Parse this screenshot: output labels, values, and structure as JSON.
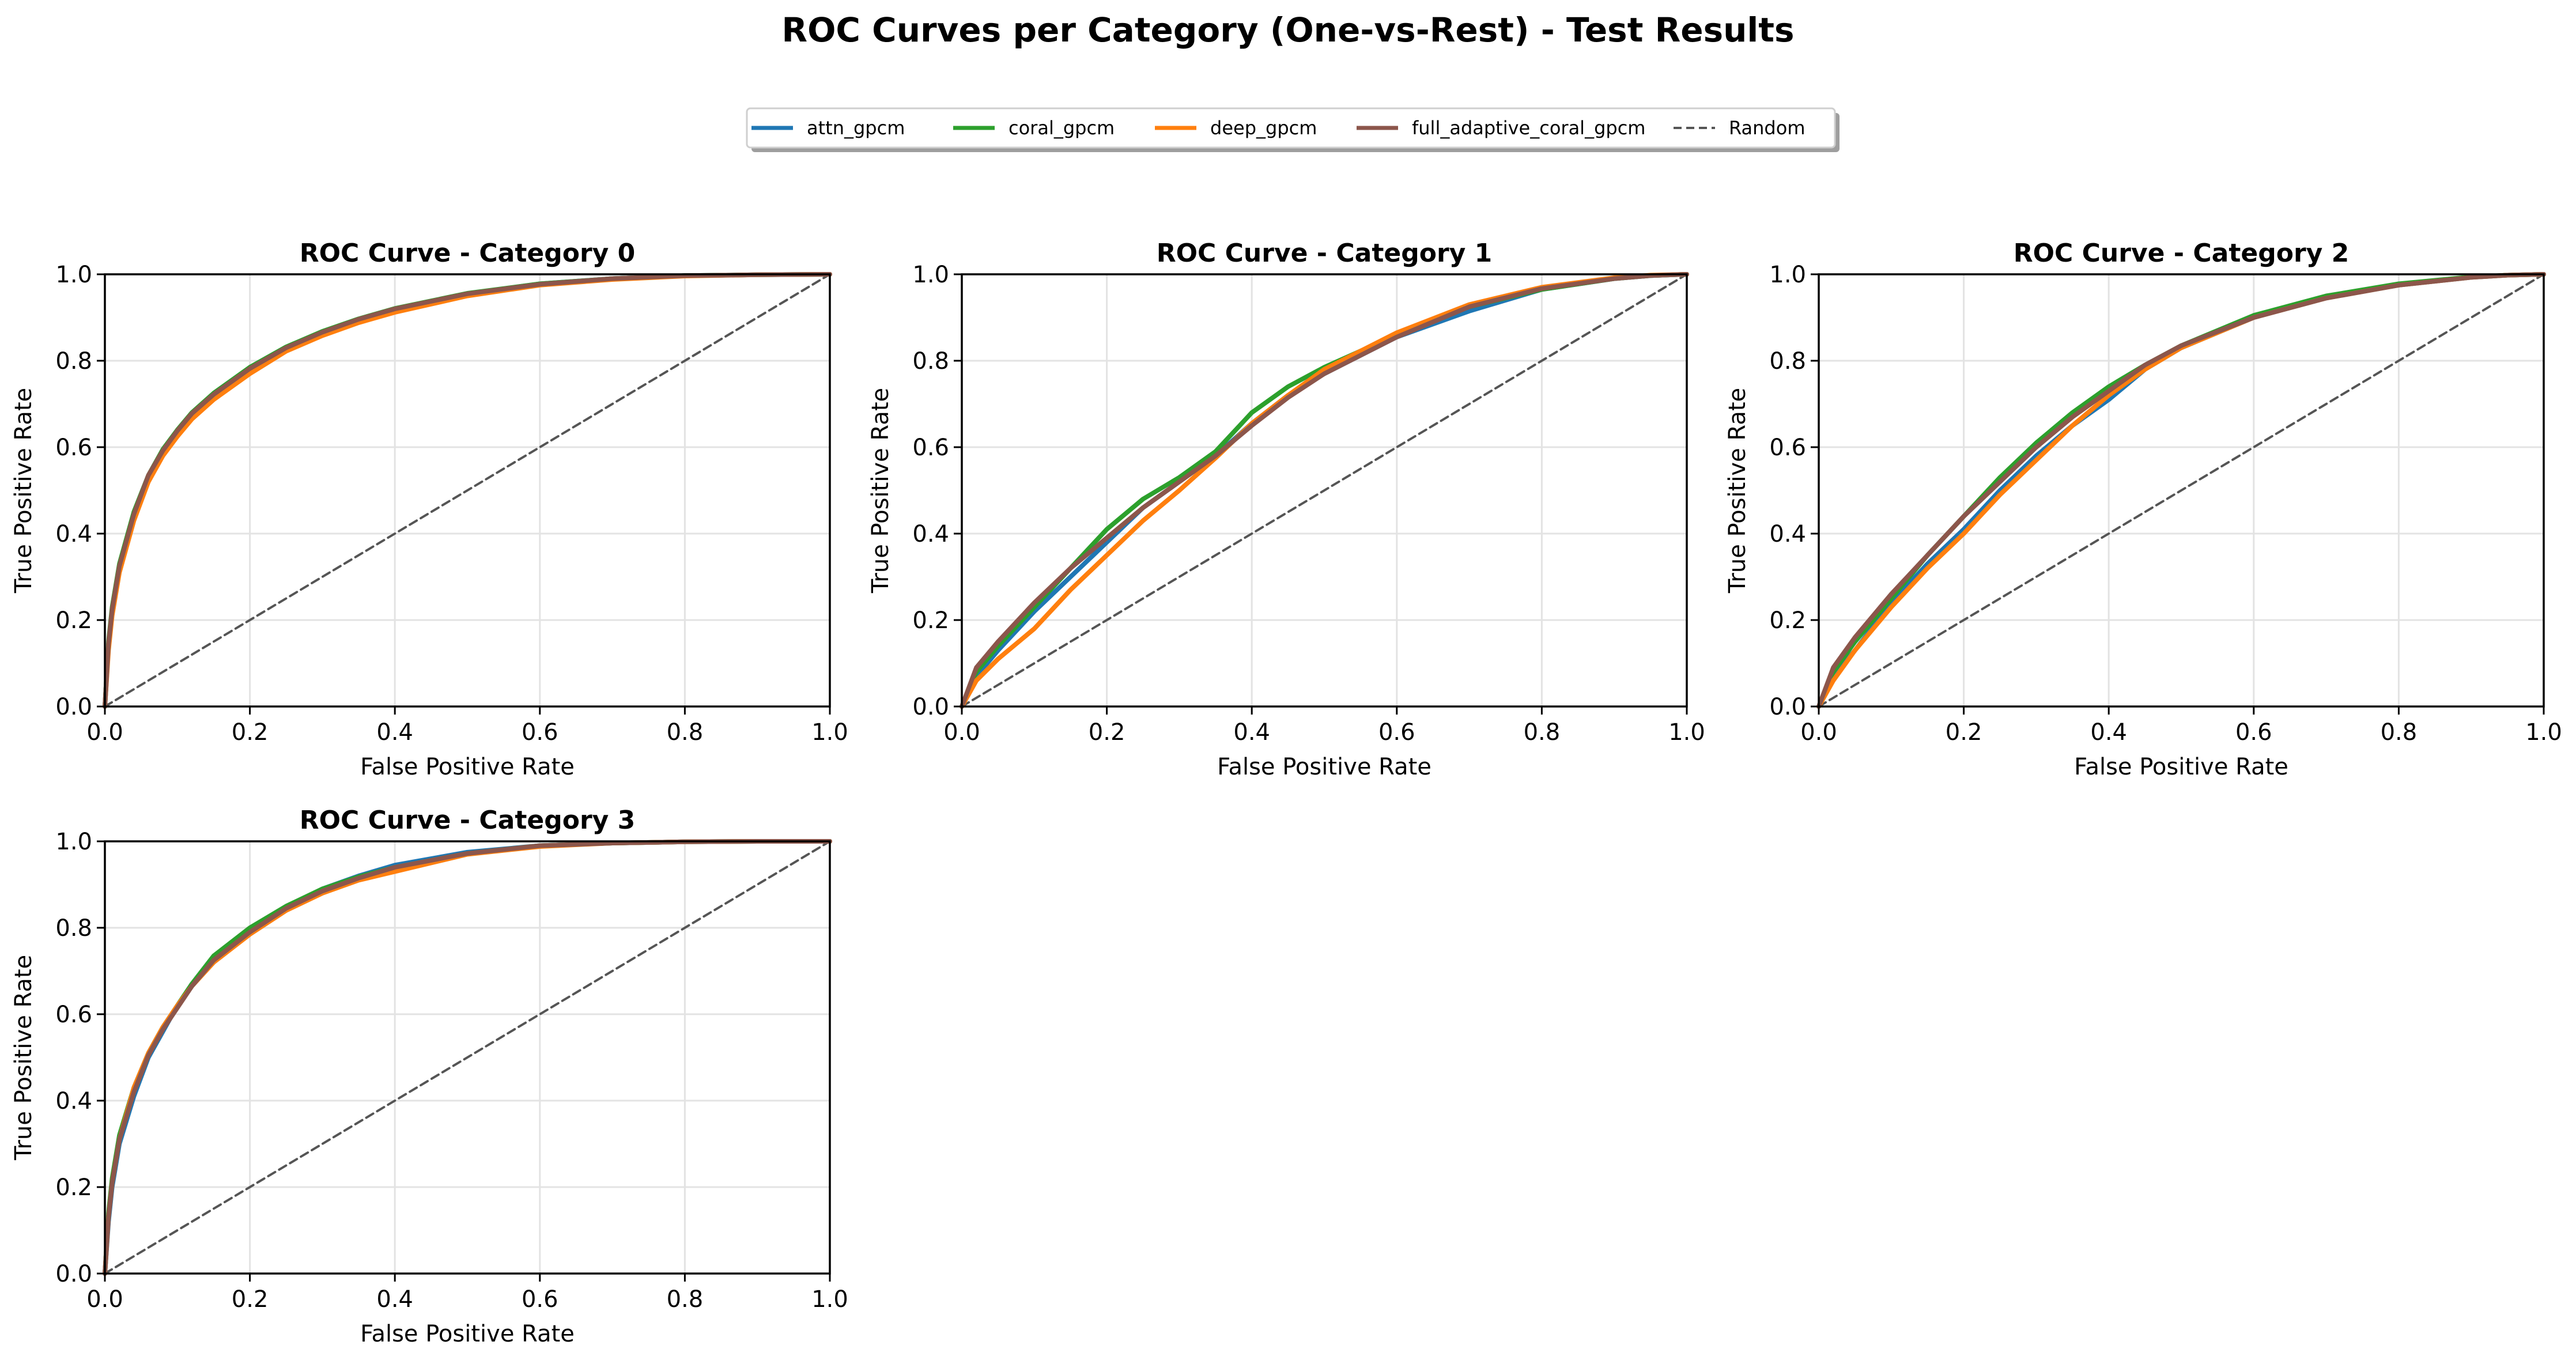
{
  "figure": {
    "suptitle": "ROC Curves per Category (One-vs-Rest) - Test Results"
  },
  "legend": {
    "placement": "top-center",
    "entries": [
      {
        "label": "attn_gpcm",
        "color": "#1f77b4",
        "style": "solid"
      },
      {
        "label": "coral_gpcm",
        "color": "#2ca02c",
        "style": "solid"
      },
      {
        "label": "deep_gpcm",
        "color": "#ff7f0e",
        "style": "solid"
      },
      {
        "label": "full_adaptive_coral_gpcm",
        "color": "#8c564b",
        "style": "solid"
      },
      {
        "label": "Random",
        "color": "#555555",
        "style": "dashed"
      }
    ]
  },
  "chart_data": [
    {
      "type": "line",
      "title": "ROC Curve - Category 0",
      "xlabel": "False Positive Rate",
      "ylabel": "True Positive Rate",
      "xlim": [
        0,
        1
      ],
      "ylim": [
        0,
        1
      ],
      "xticks": [
        "0.0",
        "0.2",
        "0.4",
        "0.6",
        "0.8",
        "1.0"
      ],
      "yticks": [
        "0.0",
        "0.2",
        "0.4",
        "0.6",
        "0.8",
        "1.0"
      ],
      "grid": true,
      "series": [
        {
          "name": "attn_gpcm",
          "x": [
            0,
            0.005,
            0.01,
            0.02,
            0.04,
            0.06,
            0.08,
            0.1,
            0.12,
            0.15,
            0.2,
            0.25,
            0.3,
            0.35,
            0.4,
            0.5,
            0.6,
            0.7,
            0.8,
            0.9,
            1.0
          ],
          "y": [
            0,
            0.14,
            0.22,
            0.32,
            0.44,
            0.53,
            0.59,
            0.635,
            0.675,
            0.72,
            0.78,
            0.83,
            0.865,
            0.895,
            0.92,
            0.955,
            0.978,
            0.99,
            0.997,
            0.999,
            1.0
          ]
        },
        {
          "name": "coral_gpcm",
          "x": [
            0,
            0.005,
            0.01,
            0.02,
            0.04,
            0.06,
            0.08,
            0.1,
            0.12,
            0.15,
            0.2,
            0.25,
            0.3,
            0.35,
            0.4,
            0.5,
            0.6,
            0.7,
            0.8,
            0.9,
            1.0
          ],
          "y": [
            0,
            0.15,
            0.23,
            0.33,
            0.45,
            0.535,
            0.595,
            0.64,
            0.68,
            0.725,
            0.785,
            0.832,
            0.868,
            0.897,
            0.921,
            0.956,
            0.978,
            0.99,
            0.997,
            0.999,
            1.0
          ]
        },
        {
          "name": "deep_gpcm",
          "x": [
            0,
            0.005,
            0.01,
            0.02,
            0.04,
            0.06,
            0.08,
            0.1,
            0.12,
            0.15,
            0.2,
            0.25,
            0.3,
            0.35,
            0.4,
            0.5,
            0.6,
            0.7,
            0.8,
            0.9,
            1.0
          ],
          "y": [
            0,
            0.13,
            0.21,
            0.31,
            0.43,
            0.52,
            0.58,
            0.625,
            0.665,
            0.71,
            0.77,
            0.822,
            0.858,
            0.888,
            0.912,
            0.95,
            0.975,
            0.988,
            0.996,
            0.999,
            1.0
          ]
        },
        {
          "name": "full_adaptive_coral_gpcm",
          "x": [
            0,
            0.005,
            0.01,
            0.02,
            0.04,
            0.06,
            0.08,
            0.1,
            0.12,
            0.15,
            0.2,
            0.25,
            0.3,
            0.35,
            0.4,
            0.5,
            0.6,
            0.7,
            0.8,
            0.9,
            1.0
          ],
          "y": [
            0,
            0.145,
            0.225,
            0.325,
            0.445,
            0.535,
            0.592,
            0.638,
            0.678,
            0.722,
            0.782,
            0.83,
            0.866,
            0.896,
            0.92,
            0.955,
            0.977,
            0.99,
            0.997,
            0.999,
            1.0
          ]
        },
        {
          "name": "Random",
          "x": [
            0,
            1
          ],
          "y": [
            0,
            1
          ]
        }
      ]
    },
    {
      "type": "line",
      "title": "ROC Curve - Category 1",
      "xlabel": "False Positive Rate",
      "ylabel": "True Positive Rate",
      "xlim": [
        0,
        1
      ],
      "ylim": [
        0,
        1
      ],
      "xticks": [
        "0.0",
        "0.2",
        "0.4",
        "0.6",
        "0.8",
        "1.0"
      ],
      "yticks": [
        "0.0",
        "0.2",
        "0.4",
        "0.6",
        "0.8",
        "1.0"
      ],
      "grid": true,
      "series": [
        {
          "name": "attn_gpcm",
          "x": [
            0,
            0.02,
            0.05,
            0.1,
            0.15,
            0.2,
            0.25,
            0.3,
            0.35,
            0.4,
            0.45,
            0.5,
            0.6,
            0.7,
            0.8,
            0.9,
            0.95,
            1.0
          ],
          "y": [
            0,
            0.07,
            0.13,
            0.22,
            0.3,
            0.38,
            0.46,
            0.52,
            0.58,
            0.655,
            0.72,
            0.77,
            0.855,
            0.915,
            0.965,
            0.99,
            0.997,
            1.0
          ]
        },
        {
          "name": "coral_gpcm",
          "x": [
            0,
            0.02,
            0.05,
            0.1,
            0.15,
            0.2,
            0.25,
            0.3,
            0.35,
            0.4,
            0.45,
            0.5,
            0.6,
            0.7,
            0.8,
            0.9,
            0.95,
            1.0
          ],
          "y": [
            0,
            0.08,
            0.14,
            0.23,
            0.32,
            0.41,
            0.48,
            0.53,
            0.59,
            0.68,
            0.74,
            0.785,
            0.86,
            0.925,
            0.965,
            0.99,
            0.997,
            1.0
          ]
        },
        {
          "name": "deep_gpcm",
          "x": [
            0,
            0.02,
            0.05,
            0.1,
            0.15,
            0.2,
            0.25,
            0.3,
            0.35,
            0.4,
            0.45,
            0.5,
            0.6,
            0.7,
            0.8,
            0.9,
            0.95,
            1.0
          ],
          "y": [
            0,
            0.06,
            0.11,
            0.18,
            0.27,
            0.35,
            0.43,
            0.5,
            0.575,
            0.655,
            0.72,
            0.78,
            0.865,
            0.93,
            0.97,
            0.992,
            0.998,
            1.0
          ]
        },
        {
          "name": "full_adaptive_coral_gpcm",
          "x": [
            0,
            0.02,
            0.05,
            0.1,
            0.15,
            0.2,
            0.25,
            0.3,
            0.35,
            0.4,
            0.45,
            0.5,
            0.6,
            0.7,
            0.8,
            0.9,
            0.95,
            1.0
          ],
          "y": [
            0,
            0.09,
            0.15,
            0.24,
            0.32,
            0.39,
            0.46,
            0.52,
            0.58,
            0.65,
            0.715,
            0.77,
            0.855,
            0.925,
            0.967,
            0.99,
            0.997,
            1.0
          ]
        },
        {
          "name": "Random",
          "x": [
            0,
            1
          ],
          "y": [
            0,
            1
          ]
        }
      ]
    },
    {
      "type": "line",
      "title": "ROC Curve - Category 2",
      "xlabel": "False Positive Rate",
      "ylabel": "True Positive Rate",
      "xlim": [
        0,
        1
      ],
      "ylim": [
        0,
        1
      ],
      "xticks": [
        "0.0",
        "0.2",
        "0.4",
        "0.6",
        "0.8",
        "1.0"
      ],
      "yticks": [
        "0.0",
        "0.2",
        "0.4",
        "0.6",
        "0.8",
        "1.0"
      ],
      "grid": true,
      "series": [
        {
          "name": "attn_gpcm",
          "x": [
            0,
            0.02,
            0.05,
            0.1,
            0.15,
            0.2,
            0.25,
            0.3,
            0.35,
            0.4,
            0.45,
            0.5,
            0.6,
            0.7,
            0.8,
            0.9,
            0.95,
            1.0
          ],
          "y": [
            0,
            0.07,
            0.13,
            0.24,
            0.33,
            0.41,
            0.5,
            0.58,
            0.65,
            0.71,
            0.78,
            0.83,
            0.9,
            0.945,
            0.975,
            0.993,
            0.998,
            1.0
          ]
        },
        {
          "name": "coral_gpcm",
          "x": [
            0,
            0.02,
            0.05,
            0.1,
            0.15,
            0.2,
            0.25,
            0.3,
            0.35,
            0.4,
            0.45,
            0.5,
            0.6,
            0.7,
            0.8,
            0.9,
            0.95,
            1.0
          ],
          "y": [
            0,
            0.08,
            0.15,
            0.25,
            0.35,
            0.44,
            0.53,
            0.61,
            0.68,
            0.74,
            0.79,
            0.835,
            0.905,
            0.95,
            0.978,
            0.994,
            0.998,
            1.0
          ]
        },
        {
          "name": "deep_gpcm",
          "x": [
            0,
            0.02,
            0.05,
            0.1,
            0.15,
            0.2,
            0.25,
            0.3,
            0.35,
            0.4,
            0.45,
            0.5,
            0.6,
            0.7,
            0.8,
            0.9,
            0.95,
            1.0
          ],
          "y": [
            0,
            0.06,
            0.13,
            0.23,
            0.32,
            0.4,
            0.49,
            0.57,
            0.65,
            0.72,
            0.78,
            0.83,
            0.9,
            0.945,
            0.975,
            0.993,
            0.998,
            1.0
          ]
        },
        {
          "name": "full_adaptive_coral_gpcm",
          "x": [
            0,
            0.02,
            0.05,
            0.1,
            0.15,
            0.2,
            0.25,
            0.3,
            0.35,
            0.4,
            0.45,
            0.5,
            0.6,
            0.7,
            0.8,
            0.9,
            0.95,
            1.0
          ],
          "y": [
            0,
            0.09,
            0.16,
            0.26,
            0.35,
            0.44,
            0.52,
            0.6,
            0.67,
            0.73,
            0.79,
            0.835,
            0.9,
            0.945,
            0.975,
            0.993,
            0.998,
            1.0
          ]
        },
        {
          "name": "Random",
          "x": [
            0,
            1
          ],
          "y": [
            0,
            1
          ]
        }
      ]
    },
    {
      "type": "line",
      "title": "ROC Curve - Category 3",
      "xlabel": "False Positive Rate",
      "ylabel": "True Positive Rate",
      "xlim": [
        0,
        1
      ],
      "ylim": [
        0,
        1
      ],
      "xticks": [
        "0.0",
        "0.2",
        "0.4",
        "0.6",
        "0.8",
        "1.0"
      ],
      "yticks": [
        "0.0",
        "0.2",
        "0.4",
        "0.6",
        "0.8",
        "1.0"
      ],
      "grid": true,
      "series": [
        {
          "name": "attn_gpcm",
          "x": [
            0,
            0.005,
            0.01,
            0.02,
            0.04,
            0.06,
            0.08,
            0.1,
            0.12,
            0.15,
            0.2,
            0.25,
            0.3,
            0.35,
            0.4,
            0.5,
            0.6,
            0.7,
            0.8,
            0.9,
            1.0
          ],
          "y": [
            0,
            0.12,
            0.2,
            0.3,
            0.41,
            0.5,
            0.56,
            0.62,
            0.67,
            0.72,
            0.79,
            0.845,
            0.89,
            0.92,
            0.945,
            0.975,
            0.99,
            0.996,
            0.999,
            1.0,
            1.0
          ]
        },
        {
          "name": "coral_gpcm",
          "x": [
            0,
            0.005,
            0.01,
            0.02,
            0.04,
            0.06,
            0.08,
            0.1,
            0.12,
            0.15,
            0.2,
            0.25,
            0.3,
            0.35,
            0.4,
            0.5,
            0.6,
            0.7,
            0.8,
            0.9,
            1.0
          ],
          "y": [
            0,
            0.14,
            0.22,
            0.32,
            0.43,
            0.51,
            0.57,
            0.62,
            0.67,
            0.735,
            0.8,
            0.85,
            0.89,
            0.918,
            0.94,
            0.972,
            0.99,
            0.996,
            0.999,
            1.0,
            1.0
          ]
        },
        {
          "name": "deep_gpcm",
          "x": [
            0,
            0.005,
            0.01,
            0.02,
            0.04,
            0.06,
            0.08,
            0.1,
            0.12,
            0.15,
            0.2,
            0.25,
            0.3,
            0.35,
            0.4,
            0.5,
            0.6,
            0.7,
            0.8,
            0.9,
            1.0
          ],
          "y": [
            0,
            0.13,
            0.21,
            0.31,
            0.43,
            0.51,
            0.57,
            0.62,
            0.665,
            0.72,
            0.785,
            0.84,
            0.88,
            0.91,
            0.93,
            0.97,
            0.988,
            0.996,
            0.999,
            1.0,
            1.0
          ]
        },
        {
          "name": "full_adaptive_coral_gpcm",
          "x": [
            0,
            0.005,
            0.01,
            0.02,
            0.04,
            0.06,
            0.08,
            0.1,
            0.12,
            0.15,
            0.2,
            0.25,
            0.3,
            0.35,
            0.4,
            0.5,
            0.6,
            0.7,
            0.8,
            0.9,
            1.0
          ],
          "y": [
            0,
            0.13,
            0.21,
            0.31,
            0.42,
            0.505,
            0.565,
            0.615,
            0.665,
            0.725,
            0.79,
            0.845,
            0.885,
            0.915,
            0.94,
            0.972,
            0.99,
            0.996,
            0.999,
            1.0,
            1.0
          ]
        },
        {
          "name": "Random",
          "x": [
            0,
            1
          ],
          "y": [
            0,
            1
          ]
        }
      ]
    }
  ]
}
